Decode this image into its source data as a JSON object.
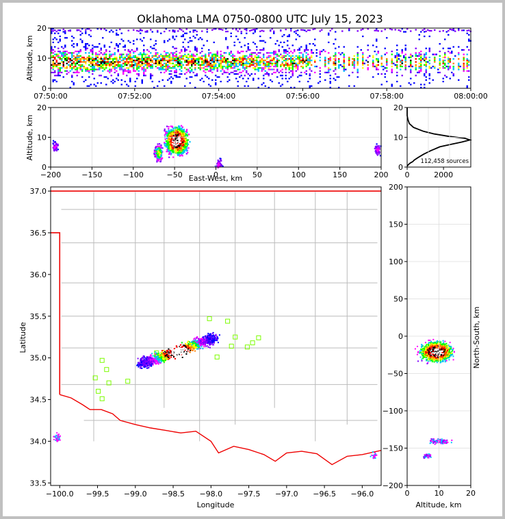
{
  "title": "Oklahoma LMA 0750-0800 UTC July 15, 2023",
  "colors": {
    "state_border": "#ee0000",
    "county_lines": "#bbbbbb",
    "stations": "#7cfc00",
    "background": "#c0c0c0"
  },
  "colormap": [
    "#0000ff",
    "#7f00ff",
    "#ff00ff",
    "#00c0ff",
    "#00ff00",
    "#ffff00",
    "#ff8000",
    "#ff0000",
    "#000000",
    "#ffffff"
  ],
  "chart_data": [
    {
      "id": "time_height",
      "type": "heatmap",
      "ylabel": "Altitude, km",
      "ylim": [
        0,
        20
      ],
      "yticks": [
        "0",
        "10",
        "20"
      ],
      "xlim": [
        "07:50:00",
        "08:00:00"
      ],
      "xticks": [
        "07:50:00",
        "07:52:00",
        "07:54:00",
        "07:56:00",
        "07:58:00",
        "08:00:00"
      ]
    },
    {
      "id": "ew_altitude",
      "type": "heatmap",
      "xlabel": "East-West, km",
      "ylabel": "Altitude, km",
      "xlim": [
        -200,
        200
      ],
      "ylim": [
        0,
        20
      ],
      "xticks": [
        "−200",
        "−150",
        "−100",
        "−50",
        "0",
        "50",
        "100",
        "150",
        "200"
      ],
      "yticks": [
        "0",
        "10",
        "20"
      ],
      "clusters": [
        {
          "x": -48,
          "y": 9,
          "intensity": "high"
        },
        {
          "x": -70,
          "y": 5,
          "intensity": "medium"
        },
        {
          "x": -195,
          "y": 7,
          "intensity": "low"
        },
        {
          "x": 3,
          "y": 1,
          "intensity": "low"
        },
        {
          "x": 195,
          "y": 6,
          "intensity": "low"
        }
      ]
    },
    {
      "id": "altitude_histogram",
      "type": "line",
      "annotation": "112,458 sources",
      "xlim": [
        0,
        3500
      ],
      "ylim": [
        0,
        20
      ],
      "xticks": [
        "0",
        "2000"
      ],
      "yticks": [
        "0",
        "10",
        "20"
      ],
      "points": [
        [
          0,
          0.3
        ],
        [
          80,
          0.9
        ],
        [
          180,
          1.4
        ],
        [
          300,
          1.8
        ],
        [
          400,
          2.4
        ],
        [
          600,
          3.2
        ],
        [
          900,
          4.3
        ],
        [
          1300,
          5.5
        ],
        [
          1800,
          6.8
        ],
        [
          2400,
          7.6
        ],
        [
          3000,
          8.4
        ],
        [
          3450,
          9.1
        ],
        [
          3150,
          9.7
        ],
        [
          2300,
          10.3
        ],
        [
          1500,
          11.1
        ],
        [
          900,
          12.0
        ],
        [
          350,
          13.3
        ],
        [
          120,
          14.6
        ],
        [
          40,
          16.0
        ],
        [
          0,
          17.3
        ],
        [
          0,
          20
        ]
      ]
    },
    {
      "id": "plan_view",
      "type": "scatter",
      "xlabel": "Longitude",
      "ylabel": "Latitude",
      "xlim": [
        -100.12,
        -95.75
      ],
      "ylim": [
        33.47,
        37.05
      ],
      "xticks": [
        "−100.0",
        "−99.5",
        "−99.0",
        "−98.5",
        "−98.0",
        "−97.5",
        "−97.0",
        "−96.5",
        "−96.0"
      ],
      "yticks": [
        "33.5",
        "34.0",
        "34.5",
        "35.0",
        "35.5",
        "36.0",
        "36.5",
        "37.0"
      ],
      "stations": [
        [
          -98.02,
          35.47
        ],
        [
          -97.78,
          35.44
        ],
        [
          -97.68,
          35.25
        ],
        [
          -97.37,
          35.24
        ],
        [
          -97.45,
          35.18
        ],
        [
          -97.73,
          35.14
        ],
        [
          -97.52,
          35.13
        ],
        [
          -97.92,
          35.01
        ],
        [
          -99.44,
          34.97
        ],
        [
          -99.38,
          34.86
        ],
        [
          -99.53,
          34.76
        ],
        [
          -99.35,
          34.7
        ],
        [
          -99.1,
          34.72
        ],
        [
          -99.49,
          34.6
        ],
        [
          -99.44,
          34.51
        ],
        [
          -98.72,
          35.06
        ]
      ]
    },
    {
      "id": "ns_altitude",
      "type": "heatmap",
      "xlabel": "Altitude, km",
      "ylabel": "North-South, km",
      "xlim": [
        0,
        20
      ],
      "ylim": [
        -200,
        200
      ],
      "xticks": [
        "0",
        "10",
        "20"
      ],
      "yticks": [
        "−200",
        "−150",
        "−100",
        "−50",
        "0",
        "50",
        "100",
        "150",
        "200"
      ]
    }
  ]
}
